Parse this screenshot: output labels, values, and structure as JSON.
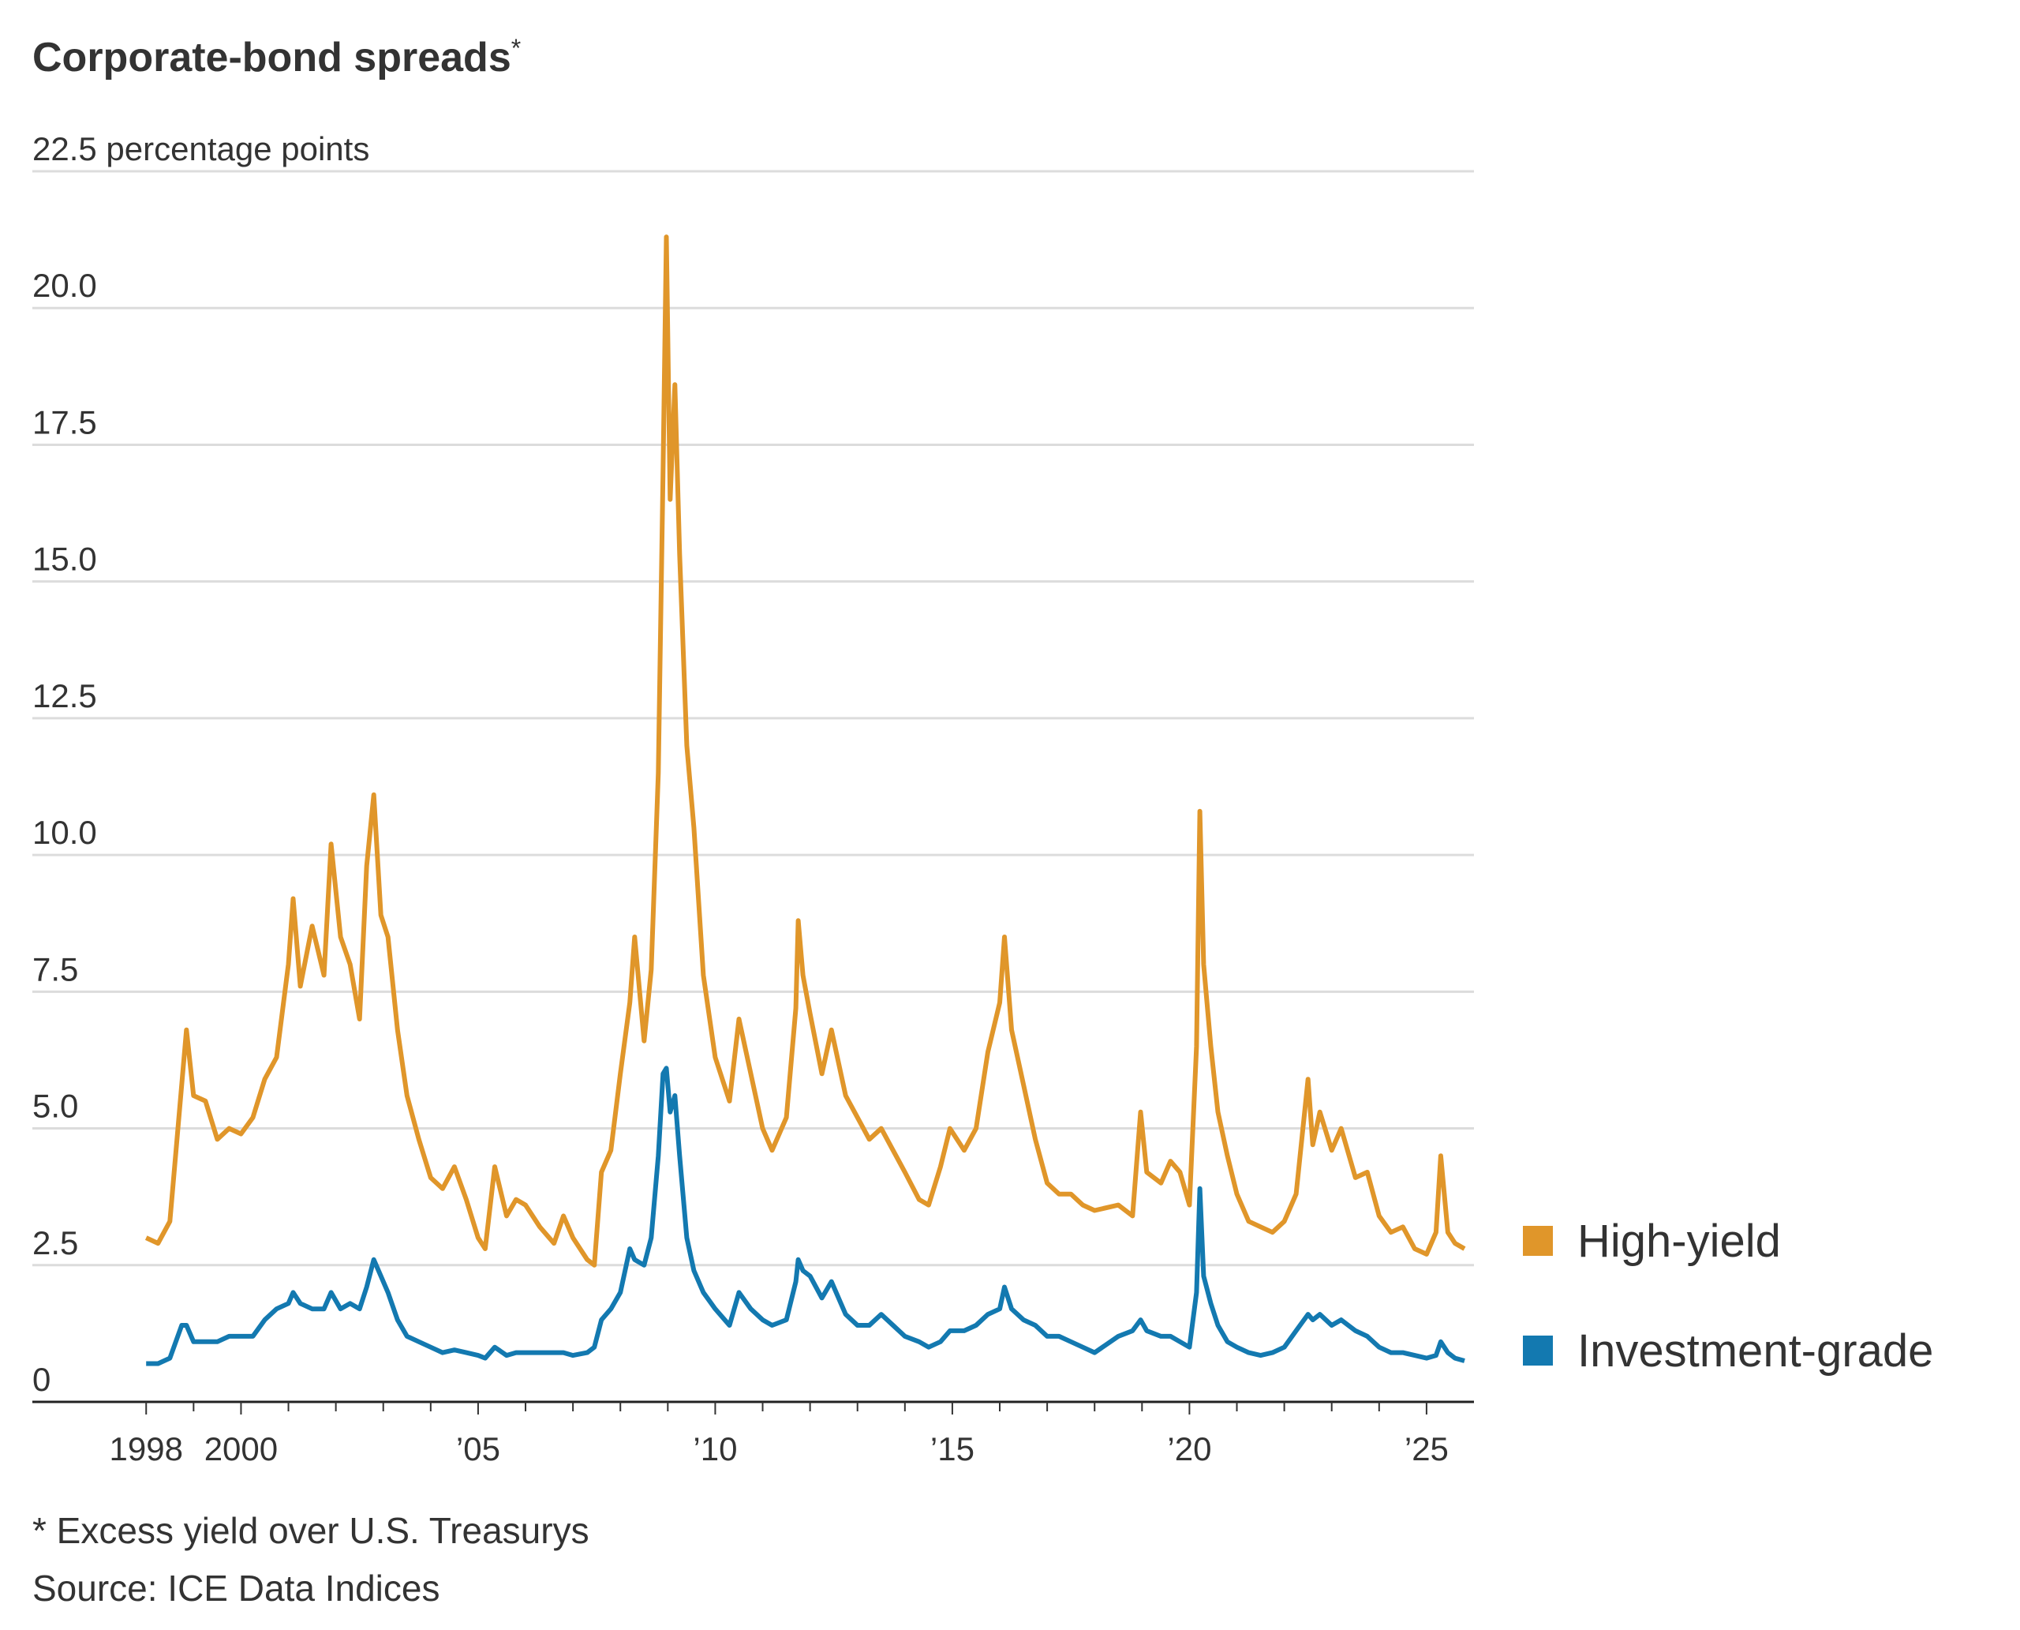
{
  "chart_data": {
    "type": "line",
    "title": "Corporate-bond spreads",
    "title_marker": "*",
    "footnote": "* Excess yield over U.S. Treasurys",
    "source": "Source: ICE Data Indices",
    "x": [
      1998,
      1998.25,
      1998.5,
      1998.75,
      1998.85,
      1999,
      1999.25,
      1999.5,
      1999.75,
      2000,
      2000.25,
      2000.5,
      2000.75,
      2001,
      2001.1,
      2001.25,
      2001.5,
      2001.75,
      2001.9,
      2002.1,
      2002.3,
      2002.5,
      2002.65,
      2002.8,
      2002.95,
      2003.1,
      2003.3,
      2003.5,
      2003.75,
      2004,
      2004.25,
      2004.5,
      2004.75,
      2005,
      2005.15,
      2005.35,
      2005.6,
      2005.8,
      2006,
      2006.3,
      2006.6,
      2006.8,
      2007,
      2007.3,
      2007.45,
      2007.6,
      2007.8,
      2008,
      2008.2,
      2008.3,
      2008.5,
      2008.65,
      2008.8,
      2008.9,
      2008.97,
      2009.05,
      2009.15,
      2009.25,
      2009.4,
      2009.55,
      2009.75,
      2010,
      2010.3,
      2010.5,
      2010.75,
      2011,
      2011.2,
      2011.5,
      2011.7,
      2011.75,
      2011.85,
      2012,
      2012.25,
      2012.45,
      2012.75,
      2013,
      2013.25,
      2013.5,
      2013.75,
      2014,
      2014.3,
      2014.5,
      2014.75,
      2014.95,
      2015.25,
      2015.5,
      2015.75,
      2016,
      2016.1,
      2016.25,
      2016.5,
      2016.75,
      2017,
      2017.25,
      2017.5,
      2017.75,
      2018,
      2018.5,
      2018.8,
      2018.97,
      2019.1,
      2019.4,
      2019.6,
      2019.8,
      2020,
      2020.15,
      2020.22,
      2020.3,
      2020.45,
      2020.6,
      2020.8,
      2021,
      2021.25,
      2021.5,
      2021.75,
      2022,
      2022.25,
      2022.5,
      2022.6,
      2022.75,
      2023,
      2023.2,
      2023.5,
      2023.75,
      2024,
      2024.25,
      2024.5,
      2024.75,
      2025,
      2025.2,
      2025.3,
      2025.45,
      2025.6,
      2025.8
    ],
    "series": [
      {
        "name": "High-yield",
        "color": "#e0962a",
        "values": [
          3.0,
          2.9,
          3.3,
          5.8,
          6.8,
          5.6,
          5.5,
          4.8,
          5.0,
          4.9,
          5.2,
          5.9,
          6.3,
          8.0,
          9.2,
          7.6,
          8.7,
          7.8,
          10.2,
          8.5,
          8.0,
          7.0,
          9.8,
          11.1,
          8.9,
          8.5,
          6.8,
          5.6,
          4.8,
          4.1,
          3.9,
          4.3,
          3.7,
          3.0,
          2.8,
          4.3,
          3.4,
          3.7,
          3.6,
          3.2,
          2.9,
          3.4,
          3.0,
          2.6,
          2.5,
          4.2,
          4.6,
          6.0,
          7.3,
          8.5,
          6.6,
          7.9,
          11.5,
          17.0,
          21.3,
          16.5,
          18.6,
          15.5,
          12.0,
          10.5,
          7.8,
          6.3,
          5.5,
          7.0,
          6.0,
          5.0,
          4.6,
          5.2,
          7.2,
          8.8,
          7.8,
          7.1,
          6.0,
          6.8,
          5.6,
          5.2,
          4.8,
          5.0,
          4.6,
          4.2,
          3.7,
          3.6,
          4.3,
          5.0,
          4.6,
          5.0,
          6.4,
          7.3,
          8.5,
          6.8,
          5.8,
          4.8,
          4.0,
          3.8,
          3.8,
          3.6,
          3.5,
          3.6,
          3.4,
          5.3,
          4.2,
          4.0,
          4.4,
          4.2,
          3.6,
          6.5,
          10.8,
          8.0,
          6.5,
          5.3,
          4.5,
          3.8,
          3.3,
          3.2,
          3.1,
          3.3,
          3.8,
          5.9,
          4.7,
          5.3,
          4.6,
          5.0,
          4.1,
          4.2,
          3.4,
          3.1,
          3.2,
          2.8,
          2.7,
          3.1,
          4.5,
          3.1,
          2.9,
          2.8
        ]
      },
      {
        "name": "Investment-grade",
        "color": "#1379b0",
        "values": [
          0.7,
          0.7,
          0.8,
          1.4,
          1.4,
          1.1,
          1.1,
          1.1,
          1.2,
          1.2,
          1.2,
          1.5,
          1.7,
          1.8,
          2.0,
          1.8,
          1.7,
          1.7,
          2.0,
          1.7,
          1.8,
          1.7,
          2.1,
          2.6,
          2.3,
          2.0,
          1.5,
          1.2,
          1.1,
          1.0,
          0.9,
          0.95,
          0.9,
          0.85,
          0.8,
          1.0,
          0.85,
          0.9,
          0.9,
          0.9,
          0.9,
          0.9,
          0.85,
          0.9,
          1.0,
          1.5,
          1.7,
          2.0,
          2.8,
          2.6,
          2.5,
          3.0,
          4.5,
          6.0,
          6.1,
          5.3,
          5.6,
          4.5,
          3.0,
          2.4,
          2.0,
          1.7,
          1.4,
          2.0,
          1.7,
          1.5,
          1.4,
          1.5,
          2.2,
          2.6,
          2.4,
          2.3,
          1.9,
          2.2,
          1.6,
          1.4,
          1.4,
          1.6,
          1.4,
          1.2,
          1.1,
          1.0,
          1.1,
          1.3,
          1.3,
          1.4,
          1.6,
          1.7,
          2.1,
          1.7,
          1.5,
          1.4,
          1.2,
          1.2,
          1.1,
          1.0,
          0.9,
          1.2,
          1.3,
          1.5,
          1.3,
          1.2,
          1.2,
          1.1,
          1.0,
          2.0,
          3.9,
          2.3,
          1.8,
          1.4,
          1.1,
          1.0,
          0.9,
          0.85,
          0.9,
          1.0,
          1.3,
          1.6,
          1.5,
          1.6,
          1.4,
          1.5,
          1.3,
          1.2,
          1.0,
          0.9,
          0.9,
          0.85,
          0.8,
          0.85,
          1.1,
          0.9,
          0.8,
          0.75
        ]
      }
    ],
    "xlim": [
      1995.6,
      2026.0
    ],
    "xticks": [
      {
        "value": 1998,
        "label": "1998"
      },
      2000,
      {
        "value": 2005,
        "label": "’05"
      },
      {
        "value": 2010,
        "label": "’10"
      },
      {
        "value": 2015,
        "label": "’15"
      },
      {
        "value": 2020,
        "label": "’20"
      },
      {
        "value": 2025,
        "label": "’25"
      }
    ],
    "xminor_ticks": [
      1999,
      2001,
      2002,
      2003,
      2004,
      2006,
      2007,
      2008,
      2009,
      2011,
      2012,
      2013,
      2014,
      2016,
      2017,
      2018,
      2019,
      2021,
      2022,
      2023,
      2024
    ],
    "ylim": [
      0,
      22.5
    ],
    "yticks": [
      0,
      2.5,
      {
        "value": 5,
        "label": "5.0"
      },
      7.5,
      {
        "value": 10,
        "label": "10.0"
      },
      12.5,
      {
        "value": 15,
        "label": "15.0"
      },
      17.5,
      {
        "value": 20,
        "label": "20.0"
      },
      {
        "value": 22.5,
        "label": "22.5 percentage points"
      }
    ],
    "grid": true,
    "legend": "right"
  }
}
